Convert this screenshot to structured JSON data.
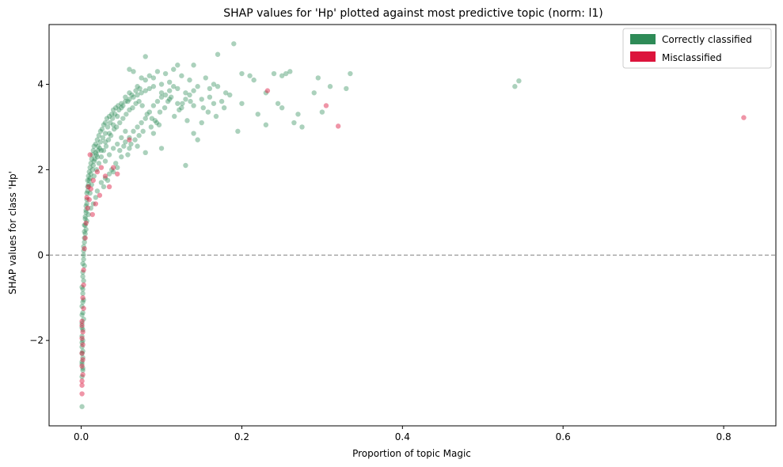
{
  "chart_data": {
    "type": "scatter",
    "title": "SHAP values for 'Hp' plotted against most predictive topic (norm: l1)",
    "xlabel": "Proportion of topic Magic",
    "ylabel": "SHAP values for class 'Hp'",
    "xlim": [
      -0.04,
      0.865
    ],
    "ylim": [
      -4.0,
      5.4
    ],
    "xticks": [
      0.0,
      0.2,
      0.4,
      0.6,
      0.8
    ],
    "xtick_labels": [
      "0.0",
      "0.2",
      "0.4",
      "0.6",
      "0.8"
    ],
    "yticks": [
      -2,
      0,
      2,
      4
    ],
    "ytick_labels": [
      "−2",
      "0",
      "2",
      "4"
    ],
    "grid": false,
    "reference_line": {
      "y": 0,
      "style": "dashed",
      "color": "#808080"
    },
    "legend_position": "top-right",
    "series": [
      {
        "name": "Correctly classified",
        "color": "#2e8b57",
        "points": [
          [
            0.001,
            -3.55
          ],
          [
            0.001,
            -2.85
          ],
          [
            0.002,
            -2.7
          ],
          [
            0.001,
            -2.55
          ],
          [
            0.002,
            -2.4
          ],
          [
            0.001,
            -2.3
          ],
          [
            0.001,
            -2.15
          ],
          [
            0.002,
            -2.0
          ],
          [
            0.001,
            -1.9
          ],
          [
            0.002,
            -1.75
          ],
          [
            0.001,
            -1.6
          ],
          [
            0.003,
            -1.5
          ],
          [
            0.002,
            -1.35
          ],
          [
            0.001,
            -1.2
          ],
          [
            0.003,
            -1.05
          ],
          [
            0.002,
            -0.9
          ],
          [
            0.001,
            -0.75
          ],
          [
            0.003,
            -0.6
          ],
          [
            0.002,
            -0.4
          ],
          [
            0.004,
            -0.25
          ],
          [
            0.003,
            -0.1
          ],
          [
            0.003,
            0.1
          ],
          [
            0.004,
            0.3
          ],
          [
            0.005,
            0.5
          ],
          [
            0.004,
            0.7
          ],
          [
            0.005,
            0.85
          ],
          [
            0.006,
            1.0
          ],
          [
            0.006,
            1.15
          ],
          [
            0.007,
            1.3
          ],
          [
            0.007,
            1.45
          ],
          [
            0.008,
            1.6
          ],
          [
            0.008,
            1.75
          ],
          [
            0.009,
            1.85
          ],
          [
            0.01,
            1.95
          ],
          [
            0.011,
            2.05
          ],
          [
            0.012,
            2.15
          ],
          [
            0.013,
            2.25
          ],
          [
            0.014,
            2.35
          ],
          [
            0.015,
            2.45
          ],
          [
            0.016,
            2.55
          ],
          [
            0.018,
            2.6
          ],
          [
            0.02,
            2.7
          ],
          [
            0.022,
            2.8
          ],
          [
            0.024,
            2.9
          ],
          [
            0.026,
            2.95
          ],
          [
            0.028,
            3.05
          ],
          [
            0.03,
            3.1
          ],
          [
            0.032,
            3.2
          ],
          [
            0.035,
            3.25
          ],
          [
            0.038,
            3.3
          ],
          [
            0.04,
            3.4
          ],
          [
            0.043,
            3.45
          ],
          [
            0.046,
            3.5
          ],
          [
            0.05,
            3.55
          ],
          [
            0.055,
            3.6
          ],
          [
            0.06,
            3.65
          ],
          [
            0.065,
            3.7
          ],
          [
            0.07,
            3.75
          ],
          [
            0.075,
            3.8
          ],
          [
            0.08,
            3.85
          ],
          [
            0.085,
            3.9
          ],
          [
            0.09,
            3.95
          ],
          [
            0.1,
            4.0
          ],
          [
            0.11,
            4.05
          ],
          [
            0.12,
            3.9
          ],
          [
            0.13,
            3.8
          ],
          [
            0.14,
            3.85
          ],
          [
            0.145,
            3.95
          ],
          [
            0.16,
            3.7
          ],
          [
            0.165,
            4.0
          ],
          [
            0.17,
            4.7
          ],
          [
            0.19,
            4.95
          ],
          [
            0.175,
            3.6
          ],
          [
            0.185,
            3.75
          ],
          [
            0.2,
            4.25
          ],
          [
            0.21,
            4.2
          ],
          [
            0.215,
            4.1
          ],
          [
            0.23,
            3.8
          ],
          [
            0.24,
            4.25
          ],
          [
            0.25,
            4.2
          ],
          [
            0.255,
            4.25
          ],
          [
            0.26,
            4.3
          ],
          [
            0.265,
            3.1
          ],
          [
            0.27,
            3.3
          ],
          [
            0.275,
            3.0
          ],
          [
            0.29,
            3.8
          ],
          [
            0.295,
            4.15
          ],
          [
            0.3,
            3.35
          ],
          [
            0.31,
            3.95
          ],
          [
            0.33,
            3.9
          ],
          [
            0.335,
            4.25
          ],
          [
            0.2,
            3.55
          ],
          [
            0.22,
            3.3
          ],
          [
            0.23,
            3.05
          ],
          [
            0.245,
            3.55
          ],
          [
            0.25,
            3.45
          ],
          [
            0.195,
            2.9
          ],
          [
            0.14,
            4.45
          ],
          [
            0.12,
            4.45
          ],
          [
            0.08,
            4.65
          ],
          [
            0.13,
            2.1
          ],
          [
            0.145,
            2.7
          ],
          [
            0.14,
            2.85
          ],
          [
            0.15,
            3.1
          ],
          [
            0.1,
            2.5
          ],
          [
            0.09,
            2.85
          ],
          [
            0.08,
            2.4
          ],
          [
            0.07,
            2.55
          ],
          [
            0.06,
            2.5
          ],
          [
            0.055,
            2.9
          ],
          [
            0.05,
            2.3
          ],
          [
            0.045,
            2.05
          ],
          [
            0.04,
            1.95
          ],
          [
            0.035,
            1.9
          ],
          [
            0.03,
            1.8
          ],
          [
            0.025,
            1.7
          ],
          [
            0.02,
            1.5
          ],
          [
            0.018,
            1.35
          ],
          [
            0.015,
            1.2
          ],
          [
            0.012,
            1.1
          ],
          [
            0.009,
            0.95
          ],
          [
            0.007,
            0.8
          ],
          [
            0.006,
            0.6
          ],
          [
            0.011,
            1.45
          ],
          [
            0.013,
            1.65
          ],
          [
            0.016,
            1.85
          ],
          [
            0.019,
            2.0
          ],
          [
            0.022,
            2.15
          ],
          [
            0.025,
            2.3
          ],
          [
            0.028,
            2.45
          ],
          [
            0.031,
            2.55
          ],
          [
            0.034,
            2.7
          ],
          [
            0.037,
            2.8
          ],
          [
            0.041,
            2.95
          ],
          [
            0.044,
            3.0
          ],
          [
            0.048,
            3.1
          ],
          [
            0.052,
            3.2
          ],
          [
            0.056,
            3.3
          ],
          [
            0.06,
            3.4
          ],
          [
            0.064,
            3.45
          ],
          [
            0.068,
            3.55
          ],
          [
            0.072,
            3.6
          ],
          [
            0.076,
            3.5
          ],
          [
            0.082,
            3.3
          ],
          [
            0.088,
            3.2
          ],
          [
            0.094,
            3.1
          ],
          [
            0.098,
            3.35
          ],
          [
            0.104,
            3.45
          ],
          [
            0.108,
            3.6
          ],
          [
            0.112,
            3.7
          ],
          [
            0.116,
            3.25
          ],
          [
            0.122,
            3.4
          ],
          [
            0.126,
            3.55
          ],
          [
            0.132,
            3.15
          ],
          [
            0.136,
            3.6
          ],
          [
            0.152,
            3.45
          ],
          [
            0.158,
            3.35
          ],
          [
            0.168,
            3.25
          ],
          [
            0.178,
            3.45
          ],
          [
            0.06,
            4.35
          ],
          [
            0.065,
            4.3
          ],
          [
            0.075,
            4.15
          ],
          [
            0.085,
            4.2
          ],
          [
            0.095,
            4.3
          ],
          [
            0.105,
            4.25
          ],
          [
            0.115,
            4.35
          ],
          [
            0.125,
            4.2
          ],
          [
            0.135,
            4.1
          ],
          [
            0.155,
            4.15
          ],
          [
            0.165,
            3.55
          ],
          [
            0.02,
            2.3
          ],
          [
            0.025,
            2.45
          ],
          [
            0.03,
            2.65
          ],
          [
            0.035,
            2.85
          ],
          [
            0.04,
            3.05
          ],
          [
            0.045,
            3.25
          ],
          [
            0.05,
            3.45
          ],
          [
            0.055,
            3.7
          ],
          [
            0.06,
            3.8
          ],
          [
            0.07,
            3.95
          ],
          [
            0.08,
            4.1
          ],
          [
            0.09,
            4.15
          ],
          [
            0.1,
            3.8
          ],
          [
            0.11,
            3.65
          ],
          [
            0.016,
            2.2
          ],
          [
            0.018,
            2.4
          ],
          [
            0.021,
            2.55
          ],
          [
            0.024,
            2.65
          ],
          [
            0.027,
            2.75
          ],
          [
            0.03,
            2.85
          ],
          [
            0.033,
            3.0
          ],
          [
            0.036,
            3.1
          ],
          [
            0.039,
            3.2
          ],
          [
            0.042,
            3.3
          ],
          [
            0.047,
            3.4
          ],
          [
            0.052,
            3.5
          ],
          [
            0.058,
            3.6
          ],
          [
            0.063,
            3.75
          ],
          [
            0.068,
            3.85
          ],
          [
            0.073,
            3.9
          ],
          [
            0.011,
            1.8
          ],
          [
            0.012,
            1.9
          ],
          [
            0.014,
            2.0
          ],
          [
            0.015,
            2.1
          ],
          [
            0.017,
            2.25
          ],
          [
            0.019,
            2.35
          ],
          [
            0.021,
            2.45
          ],
          [
            0.023,
            2.5
          ],
          [
            0.008,
            1.5
          ],
          [
            0.009,
            1.65
          ],
          [
            0.01,
            1.75
          ],
          [
            0.007,
            1.2
          ],
          [
            0.006,
            1.05
          ],
          [
            0.005,
            0.9
          ],
          [
            0.005,
            0.7
          ],
          [
            0.004,
            0.55
          ],
          [
            0.004,
            0.4
          ],
          [
            0.003,
            0.2
          ],
          [
            0.003,
            0.0
          ],
          [
            0.002,
            -0.2
          ],
          [
            0.002,
            -0.5
          ],
          [
            0.002,
            -0.8
          ],
          [
            0.002,
            -1.1
          ],
          [
            0.001,
            -1.4
          ],
          [
            0.001,
            -1.7
          ],
          [
            0.001,
            -2.05
          ],
          [
            0.002,
            -2.25
          ],
          [
            0.001,
            -2.5
          ],
          [
            0.002,
            -2.65
          ],
          [
            0.03,
            2.2
          ],
          [
            0.035,
            2.35
          ],
          [
            0.04,
            2.5
          ],
          [
            0.045,
            2.6
          ],
          [
            0.05,
            2.75
          ],
          [
            0.055,
            2.65
          ],
          [
            0.06,
            2.75
          ],
          [
            0.065,
            2.9
          ],
          [
            0.07,
            3.0
          ],
          [
            0.075,
            3.1
          ],
          [
            0.08,
            3.2
          ],
          [
            0.085,
            3.35
          ],
          [
            0.09,
            3.5
          ],
          [
            0.095,
            3.6
          ],
          [
            0.1,
            3.7
          ],
          [
            0.105,
            3.75
          ],
          [
            0.11,
            3.85
          ],
          [
            0.115,
            3.95
          ],
          [
            0.12,
            3.55
          ],
          [
            0.125,
            3.45
          ],
          [
            0.13,
            3.65
          ],
          [
            0.135,
            3.75
          ],
          [
            0.14,
            3.5
          ],
          [
            0.15,
            3.65
          ],
          [
            0.16,
            3.9
          ],
          [
            0.17,
            3.95
          ],
          [
            0.18,
            3.8
          ],
          [
            0.54,
            3.95
          ],
          [
            0.545,
            4.08
          ],
          [
            0.028,
            1.6
          ],
          [
            0.033,
            1.75
          ],
          [
            0.038,
            2.0
          ],
          [
            0.043,
            2.15
          ],
          [
            0.048,
            2.45
          ],
          [
            0.053,
            2.55
          ],
          [
            0.058,
            2.35
          ],
          [
            0.062,
            2.6
          ],
          [
            0.067,
            2.7
          ],
          [
            0.072,
            2.8
          ],
          [
            0.077,
            2.9
          ],
          [
            0.087,
            3.0
          ],
          [
            0.092,
            3.15
          ],
          [
            0.097,
            3.05
          ]
        ]
      },
      {
        "name": "Misclassified",
        "color": "#dc143c",
        "points": [
          [
            0.001,
            -3.25
          ],
          [
            0.001,
            -3.05
          ],
          [
            0.001,
            -2.95
          ],
          [
            0.002,
            -2.8
          ],
          [
            0.001,
            -2.6
          ],
          [
            0.002,
            -2.45
          ],
          [
            0.001,
            -2.3
          ],
          [
            0.002,
            -2.1
          ],
          [
            0.001,
            -1.95
          ],
          [
            0.002,
            -1.8
          ],
          [
            0.001,
            -1.65
          ],
          [
            0.001,
            -1.55
          ],
          [
            0.003,
            -1.25
          ],
          [
            0.002,
            -1.0
          ],
          [
            0.003,
            -0.7
          ],
          [
            0.003,
            -0.35
          ],
          [
            0.004,
            0.15
          ],
          [
            0.005,
            0.4
          ],
          [
            0.006,
            0.75
          ],
          [
            0.008,
            1.1
          ],
          [
            0.01,
            1.3
          ],
          [
            0.012,
            1.55
          ],
          [
            0.015,
            1.75
          ],
          [
            0.02,
            1.95
          ],
          [
            0.025,
            2.05
          ],
          [
            0.03,
            1.85
          ],
          [
            0.035,
            1.6
          ],
          [
            0.045,
            1.9
          ],
          [
            0.06,
            2.7
          ],
          [
            0.04,
            2.05
          ],
          [
            0.023,
            1.4
          ],
          [
            0.018,
            1.2
          ],
          [
            0.014,
            0.95
          ],
          [
            0.009,
            1.6
          ],
          [
            0.011,
            2.35
          ],
          [
            0.232,
            3.85
          ],
          [
            0.305,
            3.5
          ],
          [
            0.32,
            3.02
          ],
          [
            0.825,
            3.22
          ],
          [
            0.007,
            1.35
          ]
        ]
      }
    ]
  }
}
